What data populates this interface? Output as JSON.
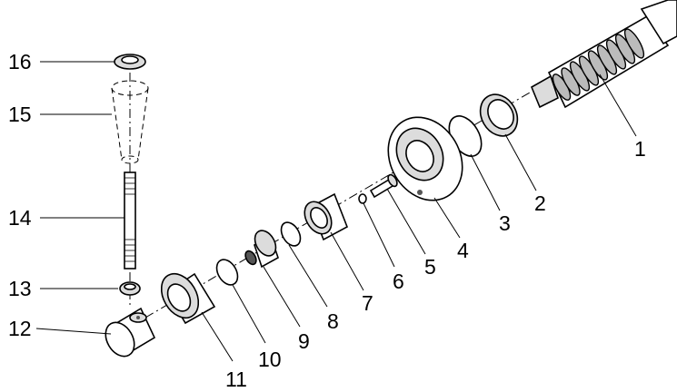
{
  "labels": {
    "p1": "1",
    "p2": "2",
    "p3": "3",
    "p4": "4",
    "p5": "5",
    "p6": "6",
    "p7": "7",
    "p8": "8",
    "p9": "9",
    "p10": "10",
    "p11": "11",
    "p12": "12",
    "p13": "13",
    "p14": "14",
    "p15": "15",
    "p16": "16"
  }
}
